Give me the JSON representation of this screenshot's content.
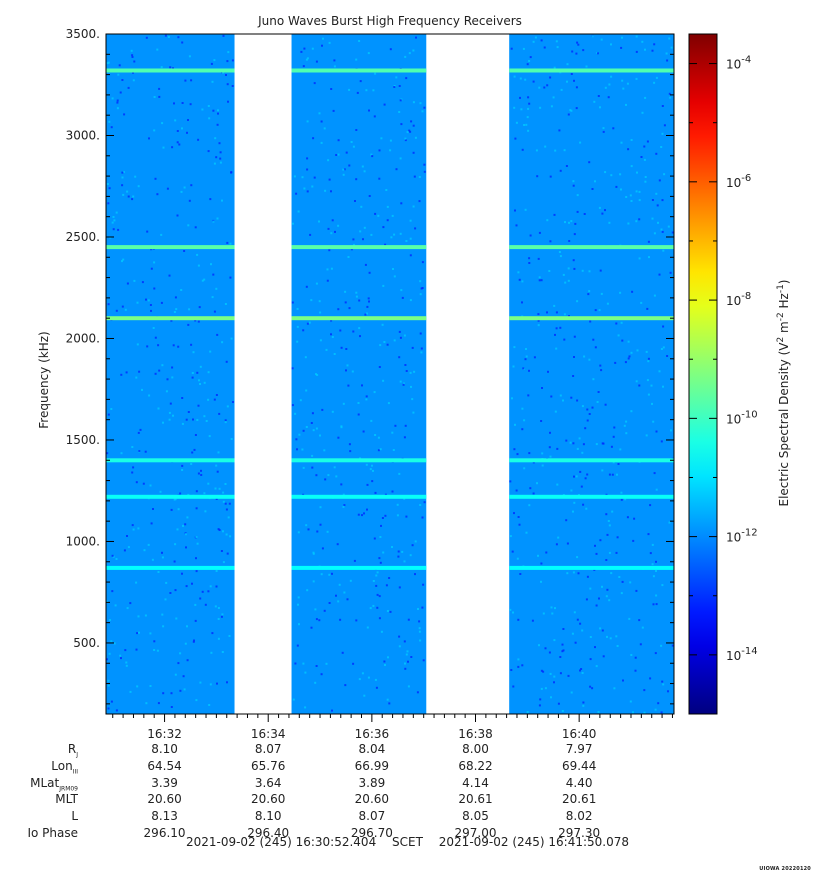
{
  "chart_data": {
    "type": "heatmap",
    "title": "Juno Waves Burst High Frequency Receivers",
    "ylabel": "Frequency (kHz)",
    "ylim": [
      150,
      3500
    ],
    "y_ticks": [
      "3500.",
      "3000.",
      "2500.",
      "2000.",
      "1500.",
      "1000.",
      "500."
    ],
    "y_tick_values": [
      3500,
      3000,
      2500,
      2000,
      1500,
      1000,
      500
    ],
    "x_ticks": [
      "16:32",
      "16:34",
      "16:36",
      "16:38",
      "16:40"
    ],
    "time_range_min": [
      30.87,
      41.83
    ],
    "time_tick_minutes": [
      32,
      34,
      36,
      38,
      40
    ],
    "data_segments_min": [
      [
        30.87,
        33.35
      ],
      [
        34.45,
        37.05
      ],
      [
        38.65,
        41.83
      ]
    ],
    "background_log_density": -11.9,
    "emission_lines": [
      {
        "freq_khz": 3320,
        "log_density": -9.8
      },
      {
        "freq_khz": 2450,
        "log_density": -9.7
      },
      {
        "freq_khz": 2100,
        "log_density": -9.3
      },
      {
        "freq_khz": 1400,
        "log_density": -10.4
      },
      {
        "freq_khz": 1220,
        "log_density": -10.6
      },
      {
        "freq_khz": 870,
        "log_density": -10.7
      }
    ],
    "colorbar": {
      "label": "Electric Spectral Density (V^2 m^-2 Hz^-1)",
      "log_range": [
        -15,
        -3.5
      ],
      "ticks": [
        -4,
        -6,
        -8,
        -10,
        -12,
        -14
      ],
      "scale": "log"
    }
  },
  "ephemeris": {
    "labels": [
      {
        "name": "R",
        "sub": "J"
      },
      {
        "name": "Lon",
        "sub": "III"
      },
      {
        "name": "MLat",
        "sub": "JRM09"
      },
      {
        "name": "MLT",
        "sub": ""
      },
      {
        "name": "L",
        "sub": ""
      },
      {
        "name": "Io Phase",
        "sub": ""
      }
    ],
    "rows": [
      [
        "8.10",
        "8.07",
        "8.04",
        "8.00",
        "7.97"
      ],
      [
        "64.54",
        "65.76",
        "66.99",
        "68.22",
        "69.44"
      ],
      [
        "3.39",
        "3.64",
        "3.89",
        "4.14",
        "4.40"
      ],
      [
        "20.60",
        "20.60",
        "20.60",
        "20.61",
        "20.61"
      ],
      [
        "8.13",
        "8.10",
        "8.07",
        "8.05",
        "8.02"
      ],
      [
        "296.10",
        "296.40",
        "296.70",
        "297.00",
        "297.30"
      ]
    ]
  },
  "footer": {
    "start": "2021-09-02 (245) 16:30:52.404",
    "middle": "SCET",
    "end": "2021-09-02 (245) 16:41:50.078"
  },
  "stamp": "UIOWA 20220120"
}
